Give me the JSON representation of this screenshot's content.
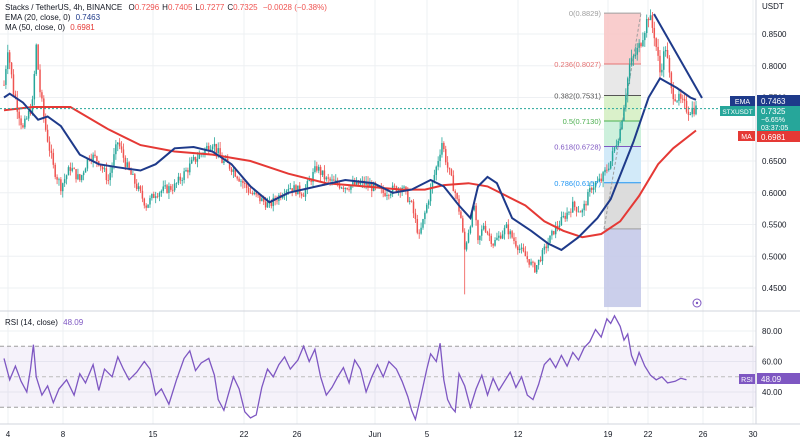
{
  "header": {
    "symbol_line": "Stacks / TetherUS, 4h, BINANCE",
    "ohlc": [
      {
        "label": "O",
        "value": "0.7296"
      },
      {
        "label": "H",
        "value": "0.7405"
      },
      {
        "label": "L",
        "value": "0.7277"
      },
      {
        "label": "C",
        "value": "0.7325"
      }
    ],
    "change": "−0.0028 (−0.38%)",
    "ema_label": "EMA (20, close, 0)",
    "ema_value": "0.7463",
    "ma_label": "MA (50, close, 0)",
    "ma_value": "0.6981",
    "rsi_label": "RSI (14, close)",
    "rsi_value": "48.09"
  },
  "axis": {
    "currency": "USDT",
    "price_ticks": [
      "0.8500",
      "0.8000",
      "0.7500",
      "0.7000",
      "0.6500",
      "0.6000",
      "0.5500",
      "0.5000",
      "0.4500"
    ],
    "rsi_ticks": [
      "80.00",
      "60.00",
      "40.00"
    ],
    "date_ticks": [
      "4",
      "8",
      "15",
      "22",
      "26",
      "Jun",
      "5",
      "12",
      "19",
      "22",
      "26",
      "30"
    ]
  },
  "badges": {
    "ema": {
      "label": "EMA",
      "value": "0.7463"
    },
    "price": {
      "label": "STXUSDT",
      "value": "0.7325",
      "change": "−6.65%",
      "countdown": "03:37:05"
    },
    "ma": {
      "label": "MA",
      "value": "0.6981"
    },
    "rsi": {
      "label": "RSI",
      "value": "48.09"
    }
  },
  "colors": {
    "up": "#26a69a",
    "down": "#ef5350",
    "ema": "#1e3a8a",
    "ma": "#e53935",
    "rsi": "#7e57c2",
    "grid": "#eef0f3"
  },
  "chart_data": {
    "type": "candlestick",
    "price_range": [
      0.42,
      0.89
    ],
    "rsi_range": [
      15,
      95
    ],
    "fibonacci": [
      {
        "label": "0(0.8829)",
        "level": 0.8829,
        "color": "#9e9e9e",
        "fill": "#f8c8c8"
      },
      {
        "label": "0.236(0.8027)",
        "level": 0.8027,
        "color": "#e57373",
        "fill": "#e6e6e6"
      },
      {
        "label": "0.382(0.7531)",
        "level": 0.7531,
        "color": "#555555",
        "fill": "#d6f0c4"
      },
      {
        "label": "0.5(0.7130)",
        "level": 0.713,
        "color": "#4caf50",
        "fill": "#c8eed8"
      },
      {
        "label": "0.618(0.6728)",
        "level": 0.6728,
        "color": "#7e57c2",
        "fill": "#cde8f8"
      },
      {
        "label": "0.786(0.6157)",
        "level": 0.6157,
        "color": "#2196f3",
        "fill": "#d8d8d8"
      },
      {
        "label": "",
        "level": 0.5431,
        "color": "#9e9e9e",
        "fill": "#c5cae9"
      }
    ],
    "fib_bottom": 0.42,
    "ema_path": [
      [
        0.75,
        0
      ],
      [
        0.756,
        3
      ],
      [
        0.742,
        10
      ],
      [
        0.715,
        18
      ],
      [
        0.72,
        23
      ],
      [
        0.705,
        30
      ],
      [
        0.66,
        40
      ],
      [
        0.645,
        50
      ],
      [
        0.64,
        60
      ],
      [
        0.635,
        72
      ],
      [
        0.645,
        80
      ],
      [
        0.67,
        90
      ],
      [
        0.672,
        100
      ],
      [
        0.665,
        110
      ],
      [
        0.645,
        120
      ],
      [
        0.61,
        130
      ],
      [
        0.585,
        140
      ],
      [
        0.6,
        150
      ],
      [
        0.61,
        165
      ],
      [
        0.62,
        180
      ],
      [
        0.615,
        195
      ],
      [
        0.6,
        205
      ],
      [
        0.605,
        215
      ],
      [
        0.62,
        225
      ],
      [
        0.61,
        232
      ],
      [
        0.58,
        240
      ],
      [
        0.56,
        246
      ],
      [
        0.61,
        250
      ],
      [
        0.625,
        255
      ],
      [
        0.615,
        260
      ],
      [
        0.56,
        268
      ],
      [
        0.54,
        278
      ],
      [
        0.52,
        287
      ],
      [
        0.51,
        294
      ],
      [
        0.53,
        303
      ],
      [
        0.56,
        313
      ],
      [
        0.59,
        320
      ],
      [
        0.68,
        332
      ],
      [
        0.75,
        340
      ],
      [
        0.78,
        346
      ],
      [
        0.765,
        355
      ],
      [
        0.75,
        362
      ],
      [
        0.7463,
        365
      ]
    ],
    "ma_path": [
      [
        0.73,
        0
      ],
      [
        0.735,
        15
      ],
      [
        0.735,
        35
      ],
      [
        0.7,
        55
      ],
      [
        0.675,
        72
      ],
      [
        0.665,
        90
      ],
      [
        0.66,
        110
      ],
      [
        0.65,
        130
      ],
      [
        0.63,
        150
      ],
      [
        0.615,
        170
      ],
      [
        0.61,
        190
      ],
      [
        0.605,
        210
      ],
      [
        0.605,
        222
      ],
      [
        0.612,
        232
      ],
      [
        0.615,
        245
      ],
      [
        0.61,
        255
      ],
      [
        0.595,
        265
      ],
      [
        0.58,
        275
      ],
      [
        0.555,
        285
      ],
      [
        0.54,
        295
      ],
      [
        0.53,
        305
      ],
      [
        0.535,
        315
      ],
      [
        0.555,
        325
      ],
      [
        0.595,
        335
      ],
      [
        0.645,
        345
      ],
      [
        0.67,
        353
      ],
      [
        0.6981,
        365
      ]
    ],
    "rsi_path": [
      [
        62,
        0
      ],
      [
        48,
        3
      ],
      [
        57,
        6
      ],
      [
        47,
        9
      ],
      [
        40,
        12
      ],
      [
        55,
        14
      ],
      [
        71,
        15.5
      ],
      [
        50,
        17
      ],
      [
        38,
        20
      ],
      [
        44,
        23
      ],
      [
        33,
        26
      ],
      [
        42,
        29
      ],
      [
        48,
        33
      ],
      [
        38,
        37
      ],
      [
        52,
        40
      ],
      [
        46,
        43
      ],
      [
        58,
        47
      ],
      [
        41,
        50
      ],
      [
        55,
        53
      ],
      [
        50,
        57
      ],
      [
        63,
        60
      ],
      [
        55,
        63
      ],
      [
        48,
        66
      ],
      [
        53,
        70
      ],
      [
        60,
        74
      ],
      [
        55,
        77
      ],
      [
        38,
        80
      ],
      [
        42,
        83
      ],
      [
        32,
        87
      ],
      [
        48,
        91
      ],
      [
        62,
        95
      ],
      [
        67,
        98
      ],
      [
        54,
        101
      ],
      [
        59,
        104
      ],
      [
        62,
        108
      ],
      [
        51,
        111
      ],
      [
        35,
        113
      ],
      [
        28,
        116
      ],
      [
        37,
        118
      ],
      [
        50,
        121
      ],
      [
        42,
        124
      ],
      [
        27,
        127
      ],
      [
        23,
        130
      ],
      [
        25,
        133
      ],
      [
        43,
        136
      ],
      [
        55,
        139
      ],
      [
        50,
        142
      ],
      [
        58,
        145
      ],
      [
        63,
        148
      ],
      [
        55,
        151
      ],
      [
        61,
        155
      ],
      [
        70,
        158
      ],
      [
        60,
        161
      ],
      [
        68,
        164
      ],
      [
        50,
        167
      ],
      [
        38,
        170
      ],
      [
        43,
        173
      ],
      [
        50,
        176
      ],
      [
        56,
        179
      ],
      [
        46,
        182
      ],
      [
        61,
        185
      ],
      [
        55,
        188
      ],
      [
        40,
        191
      ],
      [
        50,
        194
      ],
      [
        58,
        197
      ],
      [
        50,
        200
      ],
      [
        60,
        203
      ],
      [
        55,
        207
      ],
      [
        47,
        210
      ],
      [
        37,
        213
      ],
      [
        28,
        215
      ],
      [
        22,
        217
      ],
      [
        38,
        220
      ],
      [
        55,
        223
      ],
      [
        65,
        225
      ],
      [
        60,
        228
      ],
      [
        72,
        230
      ],
      [
        48,
        232
      ],
      [
        35,
        234
      ],
      [
        30,
        236
      ],
      [
        27,
        238
      ],
      [
        52,
        240
      ],
      [
        44,
        243
      ],
      [
        30,
        246
      ],
      [
        42,
        249
      ],
      [
        51,
        252
      ],
      [
        38,
        255
      ],
      [
        49,
        258
      ],
      [
        41,
        261
      ],
      [
        47,
        264
      ],
      [
        53,
        267
      ],
      [
        43,
        270
      ],
      [
        50,
        273
      ],
      [
        38,
        276
      ],
      [
        35,
        279
      ],
      [
        45,
        282
      ],
      [
        58,
        285
      ],
      [
        62,
        288
      ],
      [
        56,
        291
      ],
      [
        64,
        294
      ],
      [
        57,
        297
      ],
      [
        66,
        300
      ],
      [
        61,
        303
      ],
      [
        69,
        306
      ],
      [
        73,
        309
      ],
      [
        81,
        312
      ],
      [
        76,
        315
      ],
      [
        88,
        318
      ],
      [
        85,
        320
      ],
      [
        90,
        322
      ],
      [
        83,
        325
      ],
      [
        74,
        327
      ],
      [
        78,
        329
      ],
      [
        64,
        331
      ],
      [
        58,
        333
      ],
      [
        66,
        335
      ],
      [
        57,
        338
      ],
      [
        51,
        341
      ],
      [
        48,
        344
      ],
      [
        50,
        347
      ],
      [
        46,
        350
      ],
      [
        47,
        354
      ],
      [
        49,
        357
      ],
      [
        48.09,
        360
      ]
    ],
    "anchors": [
      [
        0,
        0.77
      ],
      [
        2,
        0.83
      ],
      [
        5,
        0.76
      ],
      [
        10,
        0.7
      ],
      [
        15,
        0.74
      ],
      [
        17,
        0.83
      ],
      [
        19,
        0.76
      ],
      [
        22,
        0.7
      ],
      [
        26,
        0.64
      ],
      [
        30,
        0.61
      ],
      [
        35,
        0.64
      ],
      [
        40,
        0.62
      ],
      [
        45,
        0.66
      ],
      [
        50,
        0.65
      ],
      [
        55,
        0.62
      ],
      [
        60,
        0.68
      ],
      [
        65,
        0.64
      ],
      [
        70,
        0.61
      ],
      [
        75,
        0.58
      ],
      [
        80,
        0.6
      ],
      [
        90,
        0.61
      ],
      [
        100,
        0.65
      ],
      [
        110,
        0.68
      ],
      [
        115,
        0.65
      ],
      [
        120,
        0.64
      ],
      [
        130,
        0.6
      ],
      [
        140,
        0.58
      ],
      [
        150,
        0.61
      ],
      [
        158,
        0.6
      ],
      [
        165,
        0.64
      ],
      [
        170,
        0.62
      ],
      [
        180,
        0.61
      ],
      [
        190,
        0.615
      ],
      [
        200,
        0.6
      ],
      [
        210,
        0.61
      ],
      [
        215,
        0.58
      ],
      [
        219,
        0.53
      ],
      [
        223,
        0.58
      ],
      [
        228,
        0.64
      ],
      [
        231,
        0.68
      ],
      [
        234,
        0.64
      ],
      [
        238,
        0.6
      ],
      [
        241,
        0.56
      ],
      [
        243,
        0.51
      ],
      [
        245,
        0.54
      ],
      [
        248,
        0.58
      ],
      [
        250,
        0.52
      ],
      [
        253,
        0.55
      ],
      [
        258,
        0.52
      ],
      [
        265,
        0.545
      ],
      [
        270,
        0.52
      ],
      [
        275,
        0.5
      ],
      [
        280,
        0.48
      ],
      [
        285,
        0.51
      ],
      [
        290,
        0.54
      ],
      [
        295,
        0.56
      ],
      [
        300,
        0.58
      ],
      [
        305,
        0.57
      ],
      [
        310,
        0.61
      ],
      [
        315,
        0.62
      ],
      [
        320,
        0.65
      ],
      [
        325,
        0.7
      ],
      [
        330,
        0.8
      ],
      [
        335,
        0.83
      ],
      [
        338,
        0.86
      ],
      [
        340,
        0.88
      ],
      [
        343,
        0.85
      ],
      [
        346,
        0.79
      ],
      [
        349,
        0.83
      ],
      [
        352,
        0.76
      ],
      [
        355,
        0.75
      ],
      [
        358,
        0.74
      ],
      [
        361,
        0.73
      ],
      [
        364,
        0.7325
      ]
    ]
  }
}
